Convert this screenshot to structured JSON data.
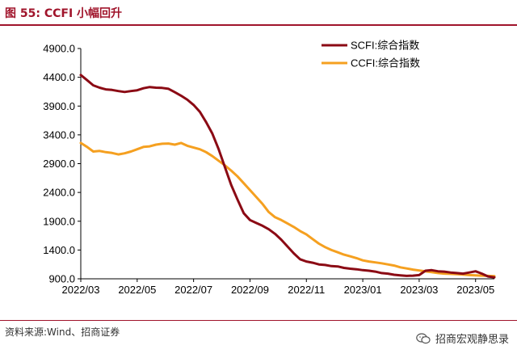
{
  "figure": {
    "label": "图 55:",
    "title": "CCFI 小幅回升"
  },
  "source": "资料来源:Wind、招商证券",
  "watermark": "招商宏观静思录",
  "chart_data": {
    "type": "line",
    "title": "",
    "xlabel": "",
    "ylabel": "",
    "ylim": [
      900,
      4900
    ],
    "yticks": [
      900,
      1400,
      1900,
      2400,
      2900,
      3400,
      3900,
      4400,
      4900
    ],
    "ytick_labels": [
      "900.0",
      "1400.0",
      "1900.0",
      "2400.0",
      "2900.0",
      "3400.0",
      "3900.0",
      "4400.0",
      "4900.0"
    ],
    "xlim": [
      "2022-03-04",
      "2023-06-09"
    ],
    "xticks": [
      "2022-03-04",
      "2022-05-06",
      "2022-07-08",
      "2022-09-09",
      "2022-11-11",
      "2023-01-13",
      "2023-03-17",
      "2023-05-19"
    ],
    "xtick_labels": [
      "2022/03",
      "2022/05",
      "2022/07",
      "2022/09",
      "2022/11",
      "2023/01",
      "2023/03",
      "2023/05"
    ],
    "legend_position": "top-right",
    "grid": false,
    "x": [
      "2022-03-04",
      "2022-03-11",
      "2022-03-18",
      "2022-03-25",
      "2022-04-01",
      "2022-04-08",
      "2022-04-15",
      "2022-04-22",
      "2022-04-29",
      "2022-05-06",
      "2022-05-13",
      "2022-05-20",
      "2022-05-27",
      "2022-06-03",
      "2022-06-10",
      "2022-06-17",
      "2022-06-24",
      "2022-07-01",
      "2022-07-08",
      "2022-07-15",
      "2022-07-22",
      "2022-07-29",
      "2022-08-05",
      "2022-08-12",
      "2022-08-19",
      "2022-08-26",
      "2022-09-02",
      "2022-09-09",
      "2022-09-16",
      "2022-09-23",
      "2022-09-30",
      "2022-10-07",
      "2022-10-14",
      "2022-10-21",
      "2022-10-28",
      "2022-11-04",
      "2022-11-11",
      "2022-11-18",
      "2022-11-25",
      "2022-12-02",
      "2022-12-09",
      "2022-12-16",
      "2022-12-23",
      "2022-12-30",
      "2023-01-06",
      "2023-01-13",
      "2023-01-20",
      "2023-01-27",
      "2023-02-03",
      "2023-02-10",
      "2023-02-17",
      "2023-02-24",
      "2023-03-03",
      "2023-03-10",
      "2023-03-17",
      "2023-03-24",
      "2023-03-31",
      "2023-04-07",
      "2023-04-14",
      "2023-04-21",
      "2023-04-28",
      "2023-05-05",
      "2023-05-12",
      "2023-05-19",
      "2023-05-26",
      "2023-06-02",
      "2023-06-09"
    ],
    "series": [
      {
        "name": "SCFI:综合指数",
        "color": "#8b0a14",
        "values": [
          4440,
          4350,
          4260,
          4220,
          4190,
          4180,
          4160,
          4145,
          4160,
          4175,
          4210,
          4230,
          4220,
          4215,
          4200,
          4140,
          4080,
          4010,
          3920,
          3800,
          3620,
          3420,
          3150,
          2840,
          2530,
          2280,
          2040,
          1920,
          1870,
          1820,
          1760,
          1680,
          1580,
          1460,
          1340,
          1240,
          1200,
          1180,
          1150,
          1140,
          1120,
          1115,
          1090,
          1075,
          1065,
          1050,
          1040,
          1025,
          1000,
          990,
          970,
          960,
          950,
          955,
          965,
          1040,
          1050,
          1030,
          1025,
          1010,
          1000,
          990,
          1010,
          1030,
          990,
          940,
          925
        ]
      },
      {
        "name": "CCFI:综合指数",
        "color": "#f5a020",
        "values": [
          3260,
          3190,
          3110,
          3120,
          3100,
          3085,
          3060,
          3080,
          3110,
          3150,
          3190,
          3200,
          3230,
          3245,
          3250,
          3230,
          3260,
          3210,
          3180,
          3150,
          3100,
          3030,
          2950,
          2870,
          2780,
          2680,
          2560,
          2440,
          2320,
          2200,
          2060,
          1970,
          1920,
          1860,
          1800,
          1730,
          1670,
          1590,
          1510,
          1450,
          1400,
          1360,
          1320,
          1290,
          1260,
          1220,
          1200,
          1185,
          1170,
          1150,
          1130,
          1100,
          1080,
          1060,
          1045,
          1030,
          1015,
          1000,
          990,
          985,
          980,
          975,
          965,
          960,
          955,
          950,
          945
        ]
      }
    ]
  }
}
